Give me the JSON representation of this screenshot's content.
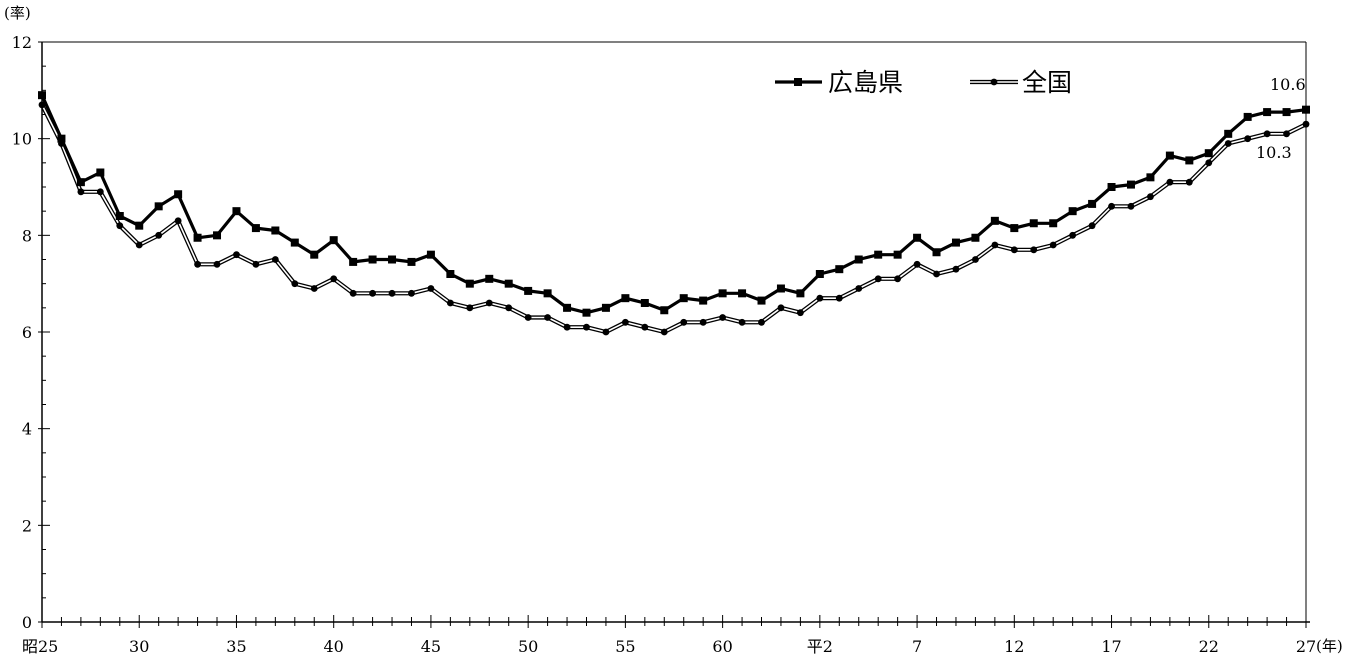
{
  "chart_data": {
    "type": "line",
    "title": "",
    "xlabel": "",
    "ylabel": "",
    "y_unit": "(率)",
    "x_unit": "(年)",
    "ylim": [
      0,
      12
    ],
    "y_ticks": [
      0,
      2,
      4,
      6,
      8,
      10,
      12
    ],
    "x_tick_labels": [
      "昭25",
      "30",
      "35",
      "40",
      "45",
      "50",
      "55",
      "60",
      "平2",
      "7",
      "12",
      "17",
      "22",
      "27"
    ],
    "grid": false,
    "legend_position": "top-right",
    "x": [
      "昭25",
      "昭26",
      "昭27",
      "昭28",
      "昭29",
      "昭30",
      "昭31",
      "昭32",
      "昭33",
      "昭34",
      "昭35",
      "昭36",
      "昭37",
      "昭38",
      "昭39",
      "昭40",
      "昭41",
      "昭42",
      "昭43",
      "昭44",
      "昭45",
      "昭46",
      "昭47",
      "昭48",
      "昭49",
      "昭50",
      "昭51",
      "昭52",
      "昭53",
      "昭54",
      "昭55",
      "昭56",
      "昭57",
      "昭58",
      "昭59",
      "昭60",
      "昭61",
      "昭62",
      "昭63",
      "平元",
      "平2",
      "平3",
      "平4",
      "平5",
      "平6",
      "平7",
      "平8",
      "平9",
      "平10",
      "平11",
      "平12",
      "平13",
      "平14",
      "平15",
      "平16",
      "平17",
      "平18",
      "平19",
      "平20",
      "平21",
      "平22",
      "平23",
      "平24",
      "平25",
      "平26",
      "平27"
    ],
    "series": [
      {
        "name": "広島県",
        "color": "#000000",
        "marker": "square",
        "values": [
          10.9,
          10.0,
          9.1,
          9.3,
          8.4,
          8.2,
          8.6,
          8.85,
          7.95,
          8.0,
          8.5,
          8.15,
          8.1,
          7.85,
          7.6,
          7.9,
          7.45,
          7.5,
          7.5,
          7.45,
          7.6,
          7.2,
          7.0,
          7.1,
          7.0,
          6.85,
          6.8,
          6.5,
          6.4,
          6.5,
          6.7,
          6.6,
          6.45,
          6.7,
          6.65,
          6.8,
          6.8,
          6.65,
          6.9,
          6.8,
          7.2,
          7.3,
          7.5,
          7.6,
          7.6,
          7.95,
          7.65,
          7.85,
          7.95,
          8.3,
          8.15,
          8.25,
          8.25,
          8.5,
          8.65,
          9.0,
          9.05,
          9.2,
          9.65,
          9.55,
          9.7,
          10.1,
          10.45,
          10.55,
          10.55,
          10.6
        ]
      },
      {
        "name": "全国",
        "color": "#ffffff",
        "marker": "circle",
        "values": [
          10.7,
          9.9,
          8.9,
          8.9,
          8.2,
          7.8,
          8.0,
          8.3,
          7.4,
          7.4,
          7.6,
          7.4,
          7.5,
          7.0,
          6.9,
          7.1,
          6.8,
          6.8,
          6.8,
          6.8,
          6.9,
          6.6,
          6.5,
          6.6,
          6.5,
          6.3,
          6.3,
          6.1,
          6.1,
          6.0,
          6.2,
          6.1,
          6.0,
          6.2,
          6.2,
          6.3,
          6.2,
          6.2,
          6.5,
          6.4,
          6.7,
          6.7,
          6.9,
          7.1,
          7.1,
          7.4,
          7.2,
          7.3,
          7.5,
          7.8,
          7.7,
          7.7,
          7.8,
          8.0,
          8.2,
          8.6,
          8.6,
          8.8,
          9.1,
          9.1,
          9.5,
          9.9,
          10.0,
          10.1,
          10.1,
          10.3
        ]
      }
    ],
    "end_labels": [
      "10.6",
      "10.3"
    ]
  }
}
